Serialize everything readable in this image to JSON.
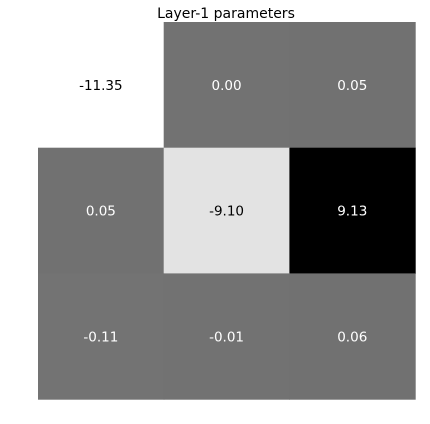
{
  "chart_data": {
    "type": "heatmap",
    "title": "Layer-1 parameters",
    "xlabel": "",
    "ylabel": "",
    "colormap": "grayscale-reversed",
    "color_low": "#ffffff",
    "color_high": "#000000",
    "value_range": [
      -11.35,
      9.13
    ],
    "grid": false,
    "rows": [
      [
        "-11.35",
        "0.00",
        "0.05"
      ],
      [
        "0.05",
        "-9.10",
        "9.13"
      ],
      [
        "-0.11",
        "-0.01",
        "0.06"
      ]
    ],
    "values": [
      [
        -11.35,
        0.0,
        0.05
      ],
      [
        0.05,
        -9.1,
        9.13
      ],
      [
        -0.11,
        -0.01,
        0.06
      ]
    ]
  }
}
